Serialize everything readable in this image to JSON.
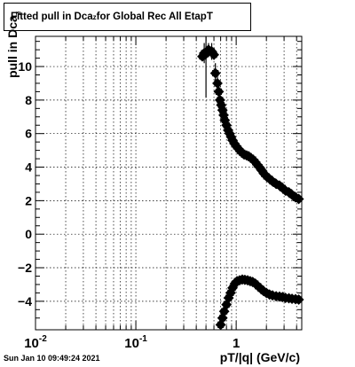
{
  "header": {
    "title_main": "Fitted pull in Dca",
    "title_sub": "z",
    "title_rest": " for Global Rec All EtapT"
  },
  "footer": {
    "timestamp": "Sun Jan 10 09:49:24 2021"
  },
  "chart_data": {
    "type": "scatter",
    "title": "Fitted pull in Dca_z for Global Rec All EtapT",
    "xlabel": "pT/|q| (GeV/c)",
    "ylabel": "pull in Dca_z",
    "x_scale": "log",
    "xlim": [
      0.01,
      4.5
    ],
    "ylim": [
      -5.7,
      11.8
    ],
    "grid": true,
    "x_ticks": [
      {
        "value": 0.01,
        "label": "10",
        "sup": "-2"
      },
      {
        "value": 0.1,
        "label": "10",
        "sup": "-1"
      },
      {
        "value": 1,
        "label": "1",
        "sup": ""
      }
    ],
    "y_ticks": [
      -4,
      -2,
      0,
      2,
      4,
      6,
      8,
      10
    ],
    "series": [
      {
        "points": [
          [
            0.46,
            10.6,
            0.0
          ],
          [
            0.48,
            10.8,
            0.6
          ],
          [
            0.5,
            10.75,
            2.6
          ],
          [
            0.53,
            11.0,
            0.4
          ],
          [
            0.57,
            10.9,
            0.5
          ],
          [
            0.6,
            10.7,
            0.3
          ],
          [
            0.62,
            9.6,
            0.6
          ],
          [
            0.65,
            9.0,
            0.4
          ],
          [
            0.67,
            8.5,
            0.3
          ],
          [
            0.69,
            8.0,
            0.3
          ],
          [
            0.71,
            7.7,
            0.2
          ],
          [
            0.73,
            7.4,
            0.2
          ],
          [
            0.75,
            7.1,
            0.15
          ],
          [
            0.77,
            6.8,
            0.15
          ],
          [
            0.8,
            6.5,
            0.1
          ],
          [
            0.83,
            6.2,
            0.1
          ],
          [
            0.86,
            6.0,
            0.1
          ],
          [
            0.89,
            5.8,
            0.1
          ],
          [
            0.92,
            5.6,
            0.1
          ],
          [
            0.96,
            5.4,
            0.1
          ],
          [
            1.0,
            5.25,
            0.1
          ],
          [
            1.05,
            5.1,
            0.1
          ],
          [
            1.1,
            4.95,
            0.1
          ],
          [
            1.15,
            4.85,
            0.1
          ],
          [
            1.2,
            4.75,
            0.1
          ],
          [
            1.27,
            4.7,
            0.1
          ],
          [
            1.33,
            4.65,
            0.1
          ],
          [
            1.4,
            4.55,
            0.1
          ],
          [
            1.47,
            4.45,
            0.1
          ],
          [
            1.55,
            4.3,
            0.1
          ],
          [
            1.62,
            4.15,
            0.1
          ],
          [
            1.7,
            4.0,
            0.1
          ],
          [
            1.8,
            3.8,
            0.1
          ],
          [
            1.9,
            3.6,
            0.1
          ],
          [
            2.0,
            3.45,
            0.1
          ],
          [
            2.15,
            3.3,
            0.1
          ],
          [
            2.3,
            3.15,
            0.1
          ],
          [
            2.5,
            3.0,
            0.1
          ],
          [
            2.7,
            2.9,
            0.1
          ],
          [
            2.9,
            2.75,
            0.1
          ],
          [
            3.1,
            2.6,
            0.1
          ],
          [
            3.35,
            2.5,
            0.1
          ],
          [
            3.6,
            2.35,
            0.1
          ],
          [
            3.9,
            2.2,
            0.1
          ],
          [
            4.2,
            2.1,
            0.1
          ]
        ]
      },
      {
        "points": [
          [
            0.7,
            -5.4,
            0.2
          ],
          [
            0.73,
            -5.0,
            0.2
          ],
          [
            0.76,
            -4.6,
            0.15
          ],
          [
            0.8,
            -4.2,
            0.15
          ],
          [
            0.84,
            -3.8,
            0.1
          ],
          [
            0.88,
            -3.5,
            0.1
          ],
          [
            0.92,
            -3.2,
            0.1
          ],
          [
            0.97,
            -2.95,
            0.1
          ],
          [
            1.02,
            -2.8,
            0.1
          ],
          [
            1.08,
            -2.75,
            0.1
          ],
          [
            1.15,
            -2.7,
            0.1
          ],
          [
            1.22,
            -2.72,
            0.1
          ],
          [
            1.3,
            -2.75,
            0.1
          ],
          [
            1.38,
            -2.8,
            0.1
          ],
          [
            1.46,
            -2.85,
            0.1
          ],
          [
            1.55,
            -2.95,
            0.1
          ],
          [
            1.65,
            -3.1,
            0.1
          ],
          [
            1.76,
            -3.25,
            0.1
          ],
          [
            1.88,
            -3.4,
            0.1
          ],
          [
            2.0,
            -3.5,
            0.1
          ],
          [
            2.15,
            -3.6,
            0.1
          ],
          [
            2.3,
            -3.65,
            0.1
          ],
          [
            2.5,
            -3.7,
            0.1
          ],
          [
            2.7,
            -3.72,
            0.1
          ],
          [
            2.9,
            -3.75,
            0.1
          ],
          [
            3.1,
            -3.8,
            0.1
          ],
          [
            3.35,
            -3.82,
            0.1
          ],
          [
            3.6,
            -3.85,
            0.1
          ],
          [
            3.9,
            -3.87,
            0.1
          ],
          [
            4.2,
            -3.9,
            0.1
          ]
        ]
      }
    ]
  }
}
